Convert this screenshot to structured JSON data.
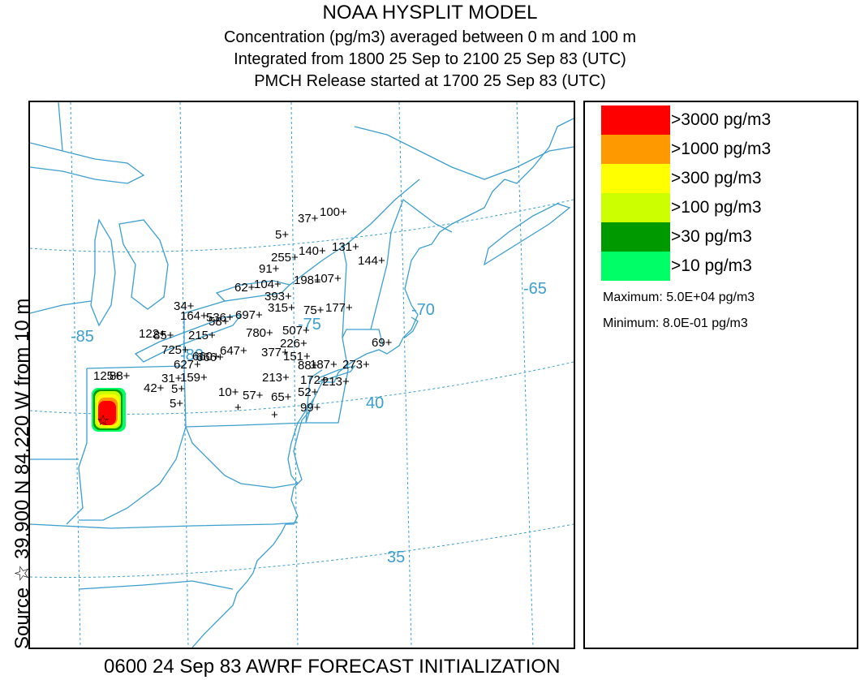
{
  "header": {
    "title": "NOAA HYSPLIT MODEL",
    "line2": "Concentration  (pg/m3) averaged between     0 m and   100 m",
    "line3": "Integrated from 1800 25 Sep to 2100 25 Sep 83 (UTC)",
    "line4": "PMCH Release started at 1700 25 Sep 83 (UTC)"
  },
  "side_label": "Source ☆  39.900  N  84.220  W    from   10 m",
  "footer": "0600 24 Sep 83 AWRF FORECAST INITIALIZATION",
  "map": {
    "lon_labels": [
      "-85",
      "-80",
      "-75",
      "-70",
      "-65"
    ],
    "lat_labels": [
      "40",
      "35"
    ],
    "line_color": "#3b9fcf",
    "source_marker": "star-icon",
    "stations": [
      {
        "label": "37+"
      },
      {
        "label": "100+"
      },
      {
        "label": "5+"
      },
      {
        "label": "255+"
      },
      {
        "label": "140+"
      },
      {
        "label": "131+"
      },
      {
        "label": "144+"
      },
      {
        "label": "91+"
      },
      {
        "label": "198+"
      },
      {
        "label": "107+"
      },
      {
        "label": "62+"
      },
      {
        "label": "104+"
      },
      {
        "label": "393+"
      },
      {
        "label": "315+"
      },
      {
        "label": "75+"
      },
      {
        "label": "177+"
      },
      {
        "label": "34+"
      },
      {
        "label": "164+"
      },
      {
        "label": "536+"
      },
      {
        "label": "58+"
      },
      {
        "label": "697+"
      },
      {
        "label": "122+"
      },
      {
        "label": "85+"
      },
      {
        "label": "215+"
      },
      {
        "label": "780+"
      },
      {
        "label": "507+"
      },
      {
        "label": "226+"
      },
      {
        "label": "69+"
      },
      {
        "label": "725+"
      },
      {
        "label": "660+"
      },
      {
        "label": "647+"
      },
      {
        "label": "377+"
      },
      {
        "label": "151+"
      },
      {
        "label": "627+"
      },
      {
        "label": "666+"
      },
      {
        "label": "88+"
      },
      {
        "label": "187+"
      },
      {
        "label": "273+"
      },
      {
        "label": "125+"
      },
      {
        "label": "88+"
      },
      {
        "label": "31+"
      },
      {
        "label": "159+"
      },
      {
        "label": "213+"
      },
      {
        "label": "172+"
      },
      {
        "label": "213+"
      },
      {
        "label": "42+"
      },
      {
        "label": "5+"
      },
      {
        "label": "10+"
      },
      {
        "label": "57+"
      },
      {
        "label": "65+"
      },
      {
        "label": "52+"
      },
      {
        "label": "5+"
      },
      {
        "label": "99+"
      },
      {
        "label": "+"
      },
      {
        "label": "+"
      }
    ]
  },
  "legend": {
    "items": [
      {
        "label": ">3000 pg/m3",
        "color": "#ff0000"
      },
      {
        "label": ">1000 pg/m3",
        "color": "#ff9900"
      },
      {
        "label": ">300 pg/m3",
        "color": "#ffff00"
      },
      {
        "label": ">100 pg/m3",
        "color": "#ccff00"
      },
      {
        "label": ">30 pg/m3",
        "color": "#009900"
      },
      {
        "label": ">10 pg/m3",
        "color": "#00ff66"
      }
    ],
    "maximum": "Maximum: 5.0E+04 pg/m3",
    "minimum": "Minimum: 8.0E-01 pg/m3"
  }
}
